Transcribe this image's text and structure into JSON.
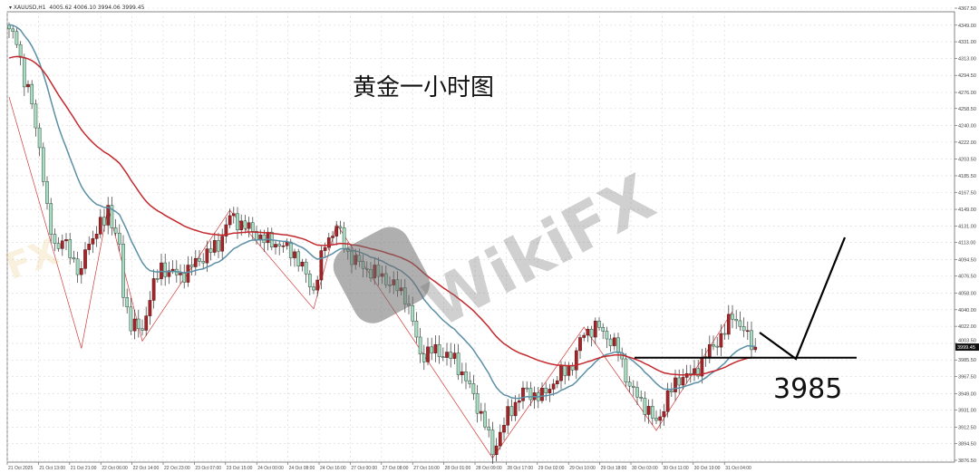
{
  "header": {
    "symbol": "XAUUSD,H1",
    "ohlc": "4005.62 4006.10 3994.06 3999.45"
  },
  "annotation_title": "黄金一小时图",
  "annotation_level": "3985",
  "watermark": "WikiFX",
  "colors": {
    "bull": "#a3262a",
    "bear": "#a9dcc2",
    "bear_outline": "#2d4d3d",
    "ma_fast": "#5b8fa6",
    "ma_slow": "#c3282d",
    "zigzag": "#d23a3a",
    "annotation": "#000000",
    "grid": "#d8d8d8"
  },
  "chart_data": {
    "type": "candlestick",
    "title": "黄金一小时图",
    "symbol": "XAUUSD,H1",
    "ylim": [
      3876.5,
      4367.5
    ],
    "y_ticks": [
      "4367.50",
      "4349.00",
      "4331.00",
      "4313.00",
      "4294.50",
      "4276.00",
      "4258.50",
      "4240.00",
      "4222.00",
      "4203.50",
      "4185.50",
      "4167.50",
      "4149.00",
      "4131.00",
      "4113.00",
      "4094.50",
      "4076.50",
      "4058.00",
      "4040.00",
      "4022.00",
      "4003.50",
      "3985.50",
      "3967.50",
      "3949.00",
      "3931.00",
      "3912.50",
      "3894.50",
      "3876.50"
    ],
    "current_price": "3999.45",
    "x_ticks": [
      "21 Oct 2025",
      "21 Oct 13:00",
      "21 Oct 21:00",
      "22 Oct 06:00",
      "22 Oct 14:00",
      "22 Oct 23:00",
      "23 Oct 07:00",
      "23 Oct 15:00",
      "24 Oct 00:00",
      "24 Oct 08:00",
      "24 Oct 16:00",
      "27 Oct 00:00",
      "27 Oct 08:00",
      "27 Oct 16:00",
      "28 Oct 01:00",
      "28 Oct 09:00",
      "28 Oct 17:00",
      "29 Oct 02:00",
      "29 Oct 10:00",
      "29 Oct 18:00",
      "30 Oct 03:00",
      "30 Oct 11:00",
      "30 Oct 19:00",
      "31 Oct 04:00"
    ],
    "grid": true,
    "close_path": [
      [
        0,
        4341
      ],
      [
        2,
        4336
      ],
      [
        4,
        4286
      ],
      [
        6,
        4266
      ],
      [
        8,
        4216
      ],
      [
        10,
        4146
      ],
      [
        12,
        4111
      ],
      [
        15,
        4111
      ],
      [
        19,
        4076
      ],
      [
        20,
        4106
      ],
      [
        23,
        4126
      ],
      [
        25,
        4136
      ],
      [
        26,
        4151
      ],
      [
        29,
        4106
      ],
      [
        30,
        4056
      ],
      [
        32,
        4026
      ],
      [
        35,
        4016
      ],
      [
        37,
        4056
      ],
      [
        40,
        4086
      ],
      [
        45,
        4076
      ],
      [
        49,
        4091
      ],
      [
        55,
        4111
      ],
      [
        58,
        4141
      ],
      [
        62,
        4131
      ],
      [
        67,
        4116
      ],
      [
        71,
        4111
      ],
      [
        75,
        4101
      ],
      [
        80,
        4061
      ],
      [
        83,
        4111
      ],
      [
        86,
        4131
      ],
      [
        89,
        4101
      ],
      [
        93,
        4086
      ],
      [
        98,
        4076
      ],
      [
        104,
        4056
      ],
      [
        106,
        4026
      ],
      [
        108,
        3991
      ],
      [
        112,
        3996
      ],
      [
        117,
        3986
      ],
      [
        121,
        3956
      ],
      [
        125,
        3916
      ],
      [
        127,
        3886
      ],
      [
        131,
        3926
      ],
      [
        135,
        3951
      ],
      [
        140,
        3946
      ],
      [
        144,
        3966
      ],
      [
        148,
        3981
      ],
      [
        151,
        4016
      ],
      [
        155,
        4021
      ],
      [
        160,
        3996
      ],
      [
        163,
        3956
      ],
      [
        167,
        3936
      ],
      [
        170,
        3916
      ],
      [
        173,
        3946
      ],
      [
        176,
        3966
      ],
      [
        180,
        3971
      ],
      [
        183,
        3991
      ],
      [
        188,
        4016
      ],
      [
        190,
        4036
      ],
      [
        193,
        4016
      ],
      [
        196,
        3999
      ]
    ],
    "zigzag": [
      [
        0,
        4271
      ],
      [
        19,
        3998
      ],
      [
        26,
        4151
      ],
      [
        35,
        4006
      ],
      [
        58,
        4148
      ],
      [
        80,
        4041
      ],
      [
        86,
        4133
      ],
      [
        127,
        3879
      ],
      [
        151,
        4021
      ],
      [
        170,
        3909
      ],
      [
        190,
        4038
      ]
    ],
    "moving_averages": [
      "fast",
      "slow"
    ],
    "horizontal_level": 3985
  }
}
